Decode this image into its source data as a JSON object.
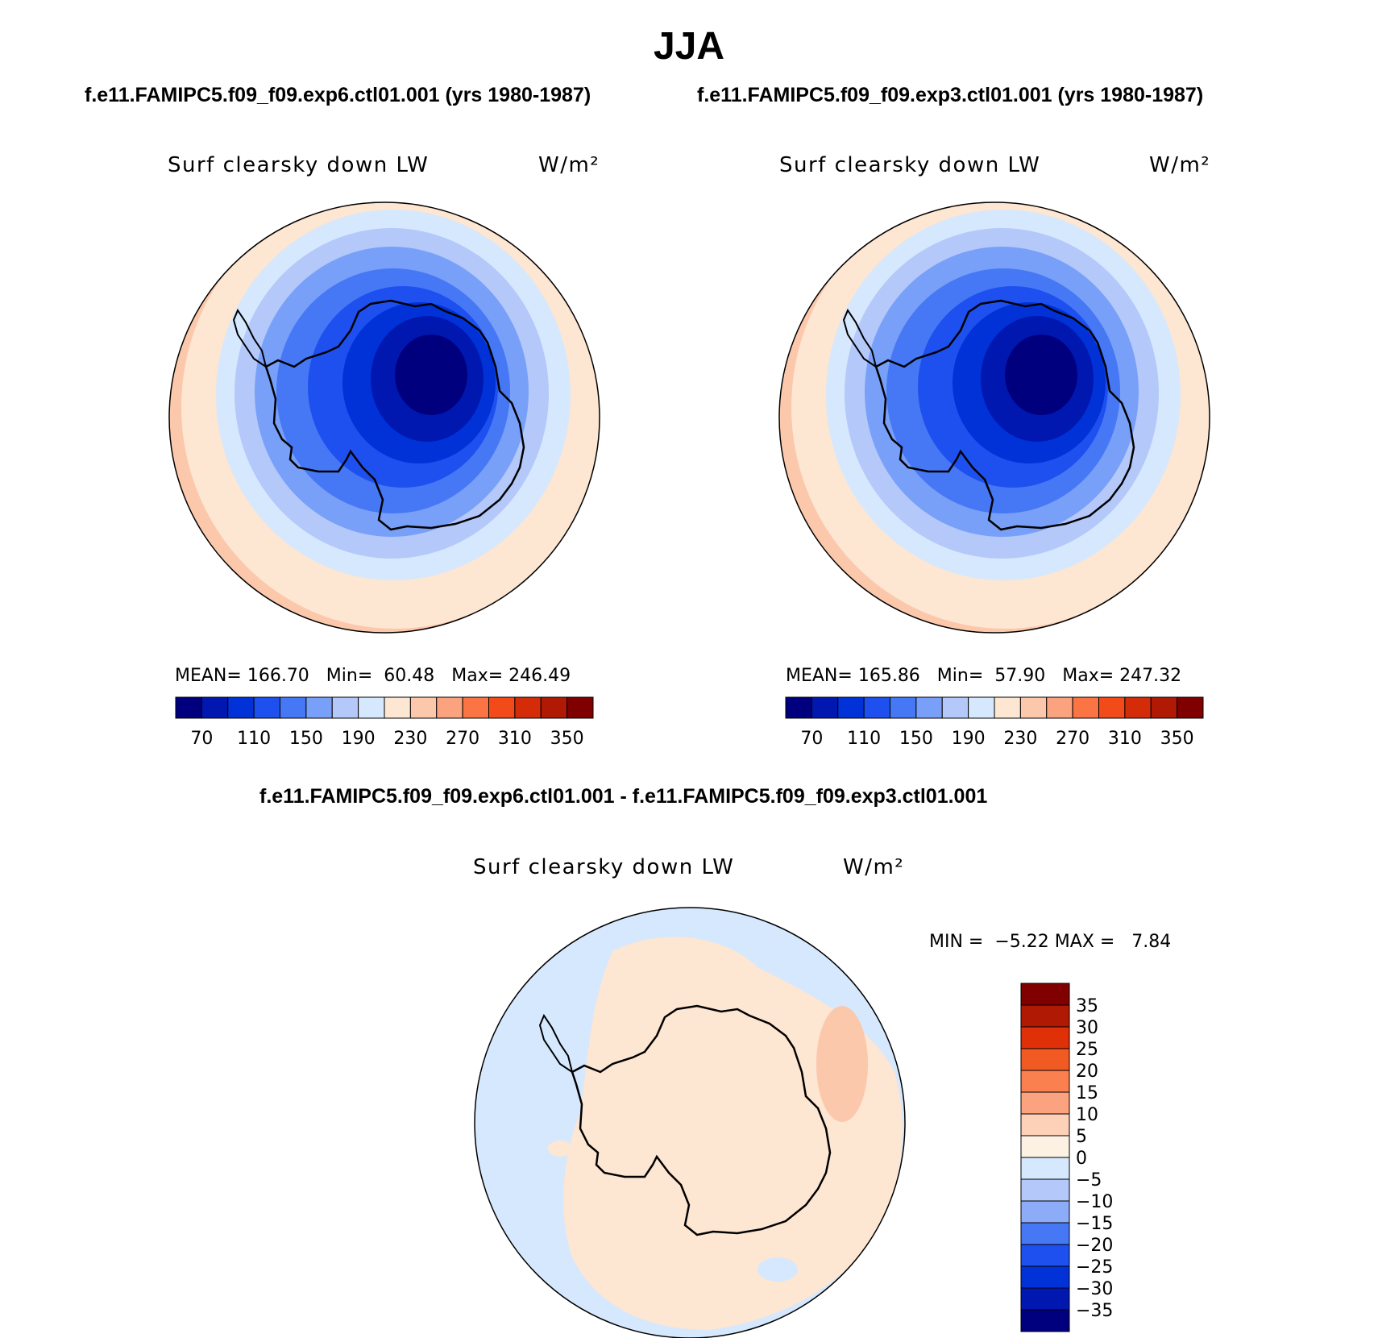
{
  "title": "JJA",
  "panels": [
    {
      "case": "f.e11.FAMIPC5.f09_f09.exp6.ctl01.001 (yrs 1980-1987)",
      "variable": "Surf clearsky down LW",
      "units": "W/m²",
      "stats": {
        "mean_label": "MEAN=",
        "mean": "166.70",
        "min_label": "Min=",
        "min": "60.48",
        "max_label": "Max=",
        "max": "246.49"
      }
    },
    {
      "case": "f.e11.FAMIPC5.f09_f09.exp3.ctl01.001 (yrs 1980-1987)",
      "variable": "Surf clearsky down LW",
      "units": "W/m²",
      "stats": {
        "mean_label": "MEAN=",
        "mean": "165.86",
        "min_label": "Min=",
        "min": "57.90",
        "max_label": "Max=",
        "max": "247.32"
      }
    }
  ],
  "field_colorbar": {
    "colors": [
      "#00007f",
      "#0018b0",
      "#0032d8",
      "#1e50f0",
      "#4678f5",
      "#78a0f8",
      "#b4c8fa",
      "#d6e8fd",
      "#fde6d2",
      "#fcc8ac",
      "#fba27e",
      "#fa7444",
      "#f24a18",
      "#d42c08",
      "#b01a04",
      "#800000"
    ],
    "labels": [
      "70",
      "110",
      "150",
      "190",
      "230",
      "270",
      "310",
      "350"
    ]
  },
  "difference_panel": {
    "case": "f.e11.FAMIPC5.f09_f09.exp6.ctl01.001 - f.e11.FAMIPC5.f09_f09.exp3.ctl01.001",
    "variable": "Surf clearsky down LW",
    "units": "W/m²",
    "min_label": "MIN =",
    "min": "−5.22",
    "max_label": "MAX =",
    "max": "7.84"
  },
  "diff_colorbar": {
    "colors_top_to_bottom": [
      "#800000",
      "#b01a04",
      "#e03008",
      "#f25a24",
      "#fa8050",
      "#fba27e",
      "#fdd0b8",
      "#fdf1e4",
      "#d6e8fd",
      "#b4c8fa",
      "#8cacf8",
      "#4678f5",
      "#1e50f0",
      "#0032d8",
      "#0018b0",
      "#00007f"
    ],
    "labels_top_to_bottom": [
      "35",
      "30",
      "25",
      "20",
      "15",
      "10",
      "5",
      "0",
      "−5",
      "−10",
      "−15",
      "−20",
      "−25",
      "−30",
      "−35"
    ]
  }
}
